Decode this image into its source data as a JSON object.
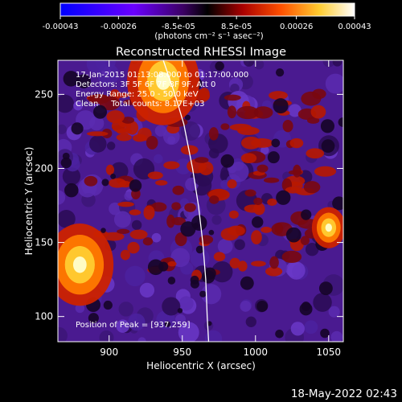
{
  "colorbar": {
    "ticks": [
      -0.00043,
      -0.00026,
      -8.5e-05,
      8.5e-05,
      0.00026,
      0.00043
    ],
    "tick_labels": [
      "-0.00043",
      "-0.00026",
      "-8.5e-05",
      "8.5e-05",
      "0.00026",
      "0.00043"
    ],
    "units_text": "(photons cm⁻² s⁻¹ asec⁻²)",
    "colors": [
      "#0000ff",
      "#6a00ff",
      "#3a0060",
      "#000000",
      "#aa0000",
      "#ff6a00",
      "#ffdd40",
      "#ffffff"
    ]
  },
  "chart_data": {
    "type": "heatmap",
    "title": "Reconstructed RHESSI Image",
    "xlabel": "Heliocentric X (arcsec)",
    "ylabel": "Heliocentric Y (arcsec)",
    "xlim": [
      865,
      1060
    ],
    "ylim": [
      83,
      273
    ],
    "xticks": [
      900,
      950,
      1000,
      1050
    ],
    "yticks": [
      100,
      150,
      200,
      250
    ],
    "annotations": [
      "17-Jan-2015 01:13:08.000 to 01:17:00.000",
      "Detectors: 3F 5F 6F 7F 8F 9F, Att 0",
      "Energy Range: 25.0 - 50.0 keV",
      "Clean     Total counts: 8.17E+03"
    ],
    "peak_label": "Position of Peak = [937,259]",
    "peak_position": [
      937,
      259
    ],
    "limb_points": [
      [
        937,
        273
      ],
      [
        945,
        250
      ],
      [
        951,
        230
      ],
      [
        957,
        200
      ],
      [
        961,
        175
      ],
      [
        964,
        150
      ],
      [
        966,
        125
      ],
      [
        967,
        100
      ],
      [
        968,
        83
      ]
    ],
    "bright_sources": [
      {
        "x": 880,
        "y": 135,
        "intensity": 0.0004
      },
      {
        "x": 937,
        "y": 259,
        "intensity": 0.00043
      },
      {
        "x": 1050,
        "y": 160,
        "intensity": 0.0002
      }
    ]
  },
  "footer": {
    "timestamp": "18-May-2022 02:43"
  }
}
